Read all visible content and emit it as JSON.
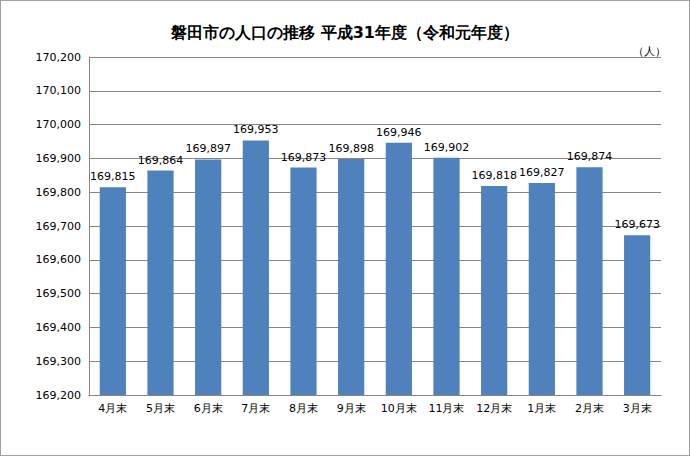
{
  "chart_data": {
    "type": "bar",
    "title": "磐田市の人口の推移 平成31年度（令和元年度）",
    "ylabel": "（人）",
    "categories": [
      "4月末",
      "5月末",
      "6月末",
      "7月末",
      "8月末",
      "9月末",
      "10月末",
      "11月末",
      "12月末",
      "1月末",
      "2月末",
      "3月末"
    ],
    "values": [
      169815,
      169864,
      169897,
      169953,
      169873,
      169898,
      169946,
      169902,
      169818,
      169827,
      169874,
      169673
    ],
    "value_labels": [
      "169,815",
      "169,864",
      "169,897",
      "169,953",
      "169,873",
      "169,898",
      "169,946",
      "169,902",
      "169,818",
      "169,827",
      "169,874",
      "169,673"
    ],
    "color": "#4f81bd",
    "ylim": [
      169200,
      170200
    ],
    "yticks": [
      {
        "value": 169200,
        "label": "169,200"
      },
      {
        "value": 169300,
        "label": "169,300"
      },
      {
        "value": 169400,
        "label": "169,400"
      },
      {
        "value": 169500,
        "label": "169,500"
      },
      {
        "value": 169600,
        "label": "169,600"
      },
      {
        "value": 169700,
        "label": "169,700"
      },
      {
        "value": 169800,
        "label": "169,800"
      },
      {
        "value": 169900,
        "label": "169,900"
      },
      {
        "value": 170000,
        "label": "170,000"
      },
      {
        "value": 170100,
        "label": "170,100"
      },
      {
        "value": 170200,
        "label": "170,200"
      }
    ],
    "grid": true,
    "data_labels": true
  }
}
